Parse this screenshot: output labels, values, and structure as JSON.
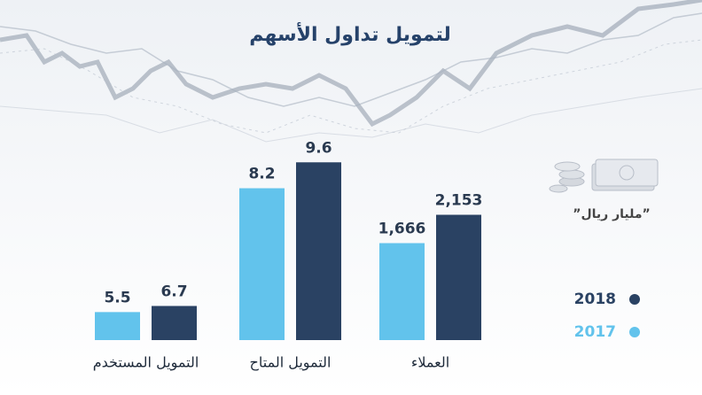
{
  "title": "لتمويل تداول الأسهم",
  "unit": "”مليار ريال”",
  "chart_data": [
    {
      "type": "bar",
      "categories": [
        "التمويل المستخدم"
      ],
      "ylim": [
        0,
        40
      ],
      "series": [
        {
          "name": "2017",
          "color": "#62c3ec",
          "values": [
            5.5
          ]
        },
        {
          "name": "2018",
          "color": "#2a4263",
          "values": [
            6.7
          ]
        }
      ]
    },
    {
      "type": "bar",
      "categories": [
        "التمويل المتاح"
      ],
      "ylim": [
        0,
        11
      ],
      "series": [
        {
          "name": "2017",
          "color": "#62c3ec",
          "values": [
            8.2
          ]
        },
        {
          "name": "2018",
          "color": "#2a4263",
          "values": [
            9.6
          ]
        }
      ]
    },
    {
      "type": "bar",
      "categories": [
        "العملاء"
      ],
      "ylim": [
        0,
        3500
      ],
      "series": [
        {
          "name": "2017",
          "color": "#62c3ec",
          "values": [
            1666
          ],
          "value_labels": [
            "1,666"
          ]
        },
        {
          "name": "2018",
          "color": "#2a4263",
          "values": [
            2153
          ],
          "value_labels": [
            "2,153"
          ]
        }
      ]
    }
  ]
}
